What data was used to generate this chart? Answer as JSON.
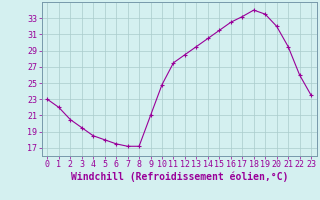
{
  "x": [
    0,
    1,
    2,
    3,
    4,
    5,
    6,
    7,
    8,
    9,
    10,
    11,
    12,
    13,
    14,
    15,
    16,
    17,
    18,
    19,
    20,
    21,
    22,
    23
  ],
  "y": [
    23,
    22,
    20.5,
    19.5,
    18.5,
    18,
    17.5,
    17.2,
    17.2,
    21,
    24.8,
    27.5,
    28.5,
    29.5,
    30.5,
    31.5,
    32.5,
    33.2,
    34,
    33.5,
    32,
    29.5,
    26,
    23.5
  ],
  "line_color": "#990099",
  "marker": "+",
  "marker_size": 3,
  "marker_lw": 0.8,
  "bg_color": "#d4f0f0",
  "grid_color": "#aacccc",
  "xlabel": "Windchill (Refroidissement éolien,°C)",
  "xlabel_color": "#990099",
  "xlabel_fontsize": 7,
  "tick_color": "#990099",
  "tick_fontsize": 6,
  "ylim": [
    16,
    35
  ],
  "xlim": [
    -0.5,
    23.5
  ],
  "yticks": [
    17,
    19,
    21,
    23,
    25,
    27,
    29,
    31,
    33
  ],
  "xticks": [
    0,
    1,
    2,
    3,
    4,
    5,
    6,
    7,
    8,
    9,
    10,
    11,
    12,
    13,
    14,
    15,
    16,
    17,
    18,
    19,
    20,
    21,
    22,
    23
  ],
  "line_width": 0.8,
  "spine_color": "#7799aa"
}
